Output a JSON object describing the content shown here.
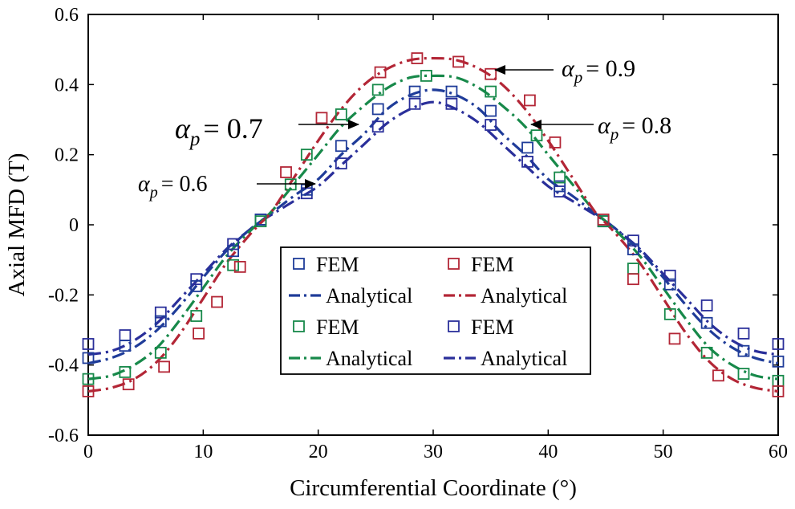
{
  "chart_data": {
    "type": "line",
    "xlabel": "Circumferential Coordinate (°)",
    "ylabel": "Axial MFD (T)",
    "xlim": [
      0,
      60
    ],
    "ylim": [
      -0.6,
      0.6
    ],
    "xticks": [
      0,
      10,
      20,
      30,
      40,
      50,
      60
    ],
    "yticks": [
      0.6,
      0.4,
      0.2,
      0,
      -0.2,
      -0.4,
      -0.6
    ],
    "xtick_labels": [
      "0",
      "10",
      "20",
      "30",
      "40",
      "50",
      "60"
    ],
    "ytick_labels": [
      "0.6",
      "0.4",
      "0.2",
      "0",
      "-0.2",
      "-0.4",
      "-0.6"
    ],
    "grid": false,
    "series": [
      {
        "name": "αp = 0.6",
        "color": "#2a2f9a",
        "analytical_x": [
          0,
          2,
          4,
          6,
          8,
          10,
          12,
          14,
          15,
          16,
          18,
          20,
          22,
          24,
          26,
          28,
          30,
          32,
          34,
          36,
          38,
          40,
          42,
          44,
          45,
          46,
          48,
          50,
          52,
          54,
          56,
          58,
          60
        ],
        "analytical_y": [
          -0.37,
          -0.36,
          -0.33,
          -0.28,
          -0.21,
          -0.14,
          -0.07,
          -0.015,
          0.01,
          0.03,
          0.07,
          0.11,
          0.17,
          0.23,
          0.29,
          0.33,
          0.35,
          0.33,
          0.29,
          0.23,
          0.17,
          0.11,
          0.07,
          0.03,
          0.01,
          -0.015,
          -0.07,
          -0.14,
          -0.21,
          -0.28,
          -0.33,
          -0.36,
          -0.37
        ],
        "fem_x": [
          0,
          3.2,
          6.3,
          9.4,
          12.6,
          15.0,
          19.0,
          22.0,
          25.2,
          28.4,
          31.6,
          35.0,
          38.2,
          41.0,
          44.8,
          47.4,
          50.6,
          53.8,
          57.0,
          60
        ],
        "fem_y": [
          -0.34,
          -0.315,
          -0.25,
          -0.155,
          -0.055,
          0.015,
          0.09,
          0.175,
          0.28,
          0.345,
          0.345,
          0.285,
          0.18,
          0.095,
          0.01,
          -0.045,
          -0.145,
          -0.23,
          -0.31,
          -0.34
        ]
      },
      {
        "name": "αp = 0.7",
        "color": "#1f3c99",
        "analytical_x": [
          0,
          2,
          4,
          6,
          8,
          10,
          12,
          14,
          15,
          16,
          18,
          20,
          22,
          24,
          26,
          28,
          30,
          32,
          34,
          36,
          38,
          40,
          42,
          44,
          45,
          46,
          48,
          50,
          52,
          54,
          56,
          58,
          60
        ],
        "analytical_y": [
          -0.395,
          -0.38,
          -0.35,
          -0.3,
          -0.23,
          -0.15,
          -0.075,
          -0.015,
          0.01,
          0.035,
          0.085,
          0.13,
          0.2,
          0.26,
          0.33,
          0.37,
          0.385,
          0.37,
          0.33,
          0.26,
          0.2,
          0.13,
          0.085,
          0.035,
          0.01,
          -0.015,
          -0.075,
          -0.15,
          -0.23,
          -0.3,
          -0.35,
          -0.38,
          -0.395
        ],
        "fem_x": [
          0,
          3.2,
          6.3,
          9.4,
          12.6,
          15.0,
          19.0,
          22.0,
          25.2,
          28.4,
          31.6,
          35.0,
          38.2,
          41.0,
          44.8,
          47.4,
          50.6,
          53.8,
          57.0,
          60
        ],
        "fem_y": [
          -0.38,
          -0.345,
          -0.275,
          -0.175,
          -0.075,
          0.015,
          0.1,
          0.225,
          0.33,
          0.38,
          0.38,
          0.325,
          0.22,
          0.11,
          0.01,
          -0.07,
          -0.17,
          -0.28,
          -0.36,
          -0.39
        ]
      },
      {
        "name": "αp = 0.8",
        "color": "#17894a",
        "analytical_x": [
          0,
          2,
          4,
          6,
          8,
          10,
          12,
          14,
          15,
          16,
          18,
          20,
          22,
          24,
          26,
          28,
          30,
          32,
          34,
          36,
          38,
          40,
          42,
          44,
          45,
          46,
          48,
          50,
          52,
          54,
          56,
          58,
          60
        ],
        "analytical_y": [
          -0.44,
          -0.43,
          -0.4,
          -0.35,
          -0.27,
          -0.18,
          -0.09,
          -0.02,
          0.01,
          0.04,
          0.12,
          0.2,
          0.28,
          0.34,
          0.39,
          0.42,
          0.425,
          0.42,
          0.39,
          0.34,
          0.28,
          0.2,
          0.12,
          0.04,
          0.01,
          -0.02,
          -0.09,
          -0.18,
          -0.27,
          -0.35,
          -0.4,
          -0.43,
          -0.44
        ],
        "fem_x": [
          0,
          3.2,
          6.3,
          9.4,
          12.6,
          15.0,
          17.6,
          19.0,
          22.0,
          25.2,
          29.4,
          35.0,
          39.0,
          41.0,
          44.8,
          47.4,
          50.6,
          53.8,
          57.0,
          60
        ],
        "fem_y": [
          -0.44,
          -0.42,
          -0.365,
          -0.26,
          -0.115,
          0.01,
          0.115,
          0.2,
          0.315,
          0.385,
          0.425,
          0.38,
          0.255,
          0.135,
          0.01,
          -0.125,
          -0.255,
          -0.365,
          -0.425,
          -0.445
        ]
      },
      {
        "name": "αp = 0.9",
        "color": "#b32636",
        "analytical_x": [
          0,
          2,
          4,
          6,
          8,
          10,
          12,
          14,
          15,
          16,
          18,
          20,
          22,
          24,
          26,
          28,
          30,
          32,
          34,
          36,
          38,
          40,
          42,
          44,
          45,
          46,
          48,
          50,
          52,
          54,
          56,
          58,
          60
        ],
        "analytical_y": [
          -0.475,
          -0.465,
          -0.44,
          -0.39,
          -0.31,
          -0.21,
          -0.11,
          -0.03,
          0.005,
          0.04,
          0.14,
          0.24,
          0.33,
          0.4,
          0.445,
          0.47,
          0.475,
          0.47,
          0.445,
          0.4,
          0.33,
          0.24,
          0.14,
          0.04,
          0.005,
          -0.03,
          -0.11,
          -0.21,
          -0.31,
          -0.39,
          -0.44,
          -0.465,
          -0.475
        ],
        "fem_x": [
          0,
          3.5,
          6.6,
          9.6,
          11.2,
          13.2,
          17.2,
          20.3,
          25.4,
          28.6,
          32.2,
          35.0,
          38.4,
          40.6,
          44.8,
          47.4,
          51.0,
          54.8,
          60
        ],
        "fem_y": [
          -0.475,
          -0.455,
          -0.405,
          -0.31,
          -0.22,
          -0.12,
          0.15,
          0.305,
          0.435,
          0.475,
          0.465,
          0.43,
          0.355,
          0.235,
          0.015,
          -0.155,
          -0.325,
          -0.43,
          -0.475
        ]
      }
    ],
    "legend": {
      "placement": "bottom-center",
      "entries": [
        {
          "label": "FEM",
          "series": 1,
          "kind": "marker"
        },
        {
          "label": "Analytical",
          "series": 1,
          "kind": "line"
        },
        {
          "label": "FEM",
          "series": 2,
          "kind": "marker"
        },
        {
          "label": "Analytical",
          "series": 2,
          "kind": "line"
        },
        {
          "label": "FEM",
          "series": 3,
          "kind": "marker"
        },
        {
          "label": "Analytical",
          "series": 3,
          "kind": "line"
        },
        {
          "label": "FEM",
          "series": 0,
          "kind": "marker"
        },
        {
          "label": "Analytical",
          "series": 0,
          "kind": "line"
        }
      ]
    },
    "annotations": [
      {
        "symbol": "α",
        "sub": "p",
        "eq": "= 0.9"
      },
      {
        "symbol": "α",
        "sub": "p",
        "eq": "= 0.7"
      },
      {
        "symbol": "α",
        "sub": "p",
        "eq": "= 0.8"
      },
      {
        "symbol": "α",
        "sub": "p",
        "eq": "= 0.6"
      }
    ]
  }
}
